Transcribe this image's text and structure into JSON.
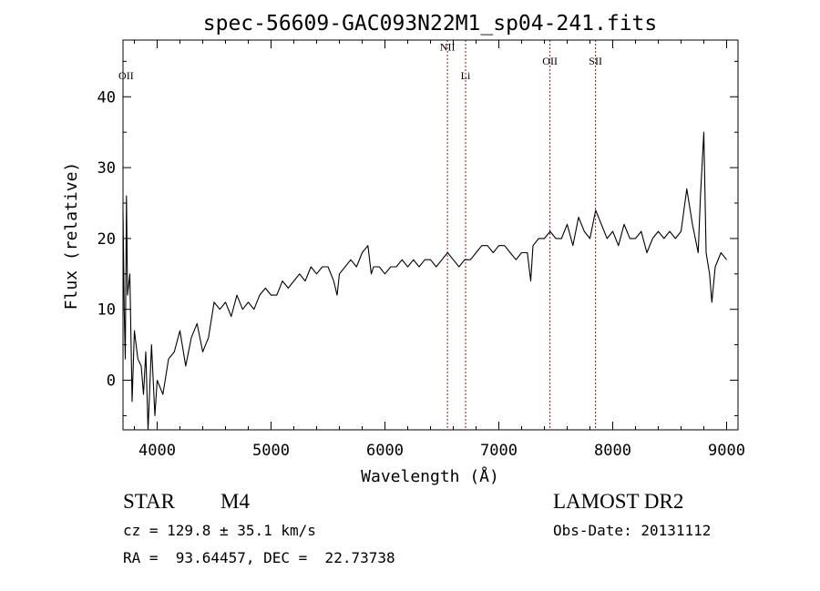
{
  "chart_data": {
    "type": "line",
    "title": "spec-56609-GAC093N22M1_sp04-241.fits",
    "xlabel": "Wavelength (Å)",
    "ylabel": "Flux (relative)",
    "xlim": [
      3700,
      9100
    ],
    "ylim": [
      -7,
      48
    ],
    "xticks": [
      4000,
      5000,
      6000,
      7000,
      8000,
      9000
    ],
    "yticks": [
      0,
      10,
      20,
      30,
      40
    ],
    "grid": false,
    "line_color": "#000000",
    "series": [
      {
        "x": [
          3700,
          3710,
          3720,
          3730,
          3740,
          3760,
          3780,
          3800,
          3830,
          3860,
          3880,
          3900,
          3920,
          3950,
          3980,
          4000,
          4050,
          4100,
          4150,
          4200,
          4250,
          4300,
          4350,
          4400,
          4450,
          4500,
          4550,
          4600,
          4650,
          4700,
          4750,
          4800,
          4850,
          4900,
          4950,
          5000,
          5050,
          5100,
          5150,
          5200,
          5250,
          5300,
          5350,
          5400,
          5450,
          5500,
          5550,
          5580,
          5600,
          5650,
          5700,
          5750,
          5800,
          5850,
          5880,
          5900,
          5950,
          6000,
          6050,
          6100,
          6150,
          6200,
          6250,
          6300,
          6350,
          6400,
          6450,
          6500,
          6550,
          6600,
          6650,
          6700,
          6750,
          6800,
          6850,
          6900,
          6950,
          7000,
          7050,
          7100,
          7150,
          7200,
          7250,
          7280,
          7300,
          7350,
          7400,
          7450,
          7500,
          7550,
          7600,
          7650,
          7700,
          7750,
          7800,
          7850,
          7900,
          7950,
          8000,
          8050,
          8100,
          8150,
          8200,
          8250,
          8300,
          8350,
          8400,
          8450,
          8500,
          8550,
          8600,
          8650,
          8700,
          8750,
          8770,
          8800,
          8820,
          8850,
          8870,
          8900,
          8950,
          9000
        ],
        "y": [
          24,
          10,
          3,
          26,
          12,
          15,
          -3,
          7,
          3,
          2,
          -2,
          4,
          -8,
          5,
          -5,
          0,
          -2,
          3,
          4,
          7,
          2,
          6,
          8,
          4,
          6,
          11,
          10,
          11,
          9,
          12,
          10,
          11,
          10,
          12,
          13,
          12,
          12,
          14,
          13,
          14,
          15,
          14,
          16,
          15,
          16,
          16,
          14,
          12,
          15,
          16,
          17,
          16,
          18,
          19,
          15,
          16,
          16,
          15,
          16,
          16,
          17,
          16,
          17,
          16,
          17,
          17,
          16,
          17,
          18,
          17,
          16,
          17,
          17,
          18,
          19,
          19,
          18,
          19,
          19,
          18,
          17,
          18,
          18,
          14,
          19,
          20,
          20,
          21,
          20,
          20,
          22,
          19,
          23,
          21,
          20,
          24,
          22,
          20,
          21,
          19,
          22,
          20,
          20,
          21,
          18,
          20,
          21,
          20,
          21,
          20,
          21,
          27,
          22,
          18,
          26,
          35,
          18,
          15,
          11,
          16,
          18,
          17
        ]
      }
    ],
    "emission_lines": [
      {
        "label": "OII",
        "wavelength": 3727,
        "label_y": 42.5,
        "marker": false
      },
      {
        "label": "NII",
        "wavelength": 6549,
        "label_y": 46.5,
        "marker": true
      },
      {
        "label": "Li",
        "wavelength": 6708,
        "label_y": 42.5,
        "marker": true
      },
      {
        "label": "OII",
        "wavelength": 7449,
        "label_y": 44.5,
        "marker": true
      },
      {
        "label": "SII",
        "wavelength": 7849,
        "label_y": 44.5,
        "marker": true
      }
    ],
    "marker_color": "#8b1a1a"
  },
  "info": {
    "class": "STAR",
    "subclass": "M4",
    "survey": "LAMOST DR2",
    "cz": "cz = 129.8 ± 35.1 km/s",
    "obs_date": "Obs-Date: 20131112",
    "radec": "RA =  93.64457, DEC =  22.73738"
  }
}
